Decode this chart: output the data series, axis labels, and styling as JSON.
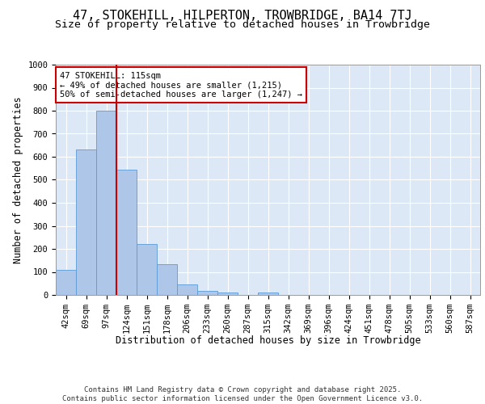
{
  "title": "47, STOKEHILL, HILPERTON, TROWBRIDGE, BA14 7TJ",
  "subtitle": "Size of property relative to detached houses in Trowbridge",
  "xlabel": "Distribution of detached houses by size in Trowbridge",
  "ylabel": "Number of detached properties",
  "categories": [
    "42sqm",
    "69sqm",
    "97sqm",
    "124sqm",
    "151sqm",
    "178sqm",
    "206sqm",
    "233sqm",
    "260sqm",
    "287sqm",
    "315sqm",
    "342sqm",
    "369sqm",
    "396sqm",
    "424sqm",
    "451sqm",
    "478sqm",
    "505sqm",
    "533sqm",
    "560sqm",
    "587sqm"
  ],
  "values": [
    110,
    630,
    800,
    545,
    220,
    135,
    45,
    18,
    10,
    0,
    10,
    0,
    0,
    0,
    0,
    0,
    0,
    0,
    0,
    0,
    0
  ],
  "bar_color": "#aec6e8",
  "bar_edge_color": "#5b9bd5",
  "vline_x_index": 2,
  "vline_color": "#cc0000",
  "annotation_text": "47 STOKEHILL: 115sqm\n← 49% of detached houses are smaller (1,215)\n50% of semi-detached houses are larger (1,247) →",
  "annotation_box_color": "#cc0000",
  "background_color": "#dce8f5",
  "grid_color": "#ffffff",
  "ylim": [
    0,
    1000
  ],
  "yticks": [
    0,
    100,
    200,
    300,
    400,
    500,
    600,
    700,
    800,
    900,
    1000
  ],
  "footer": "Contains HM Land Registry data © Crown copyright and database right 2025.\nContains public sector information licensed under the Open Government Licence v3.0.",
  "title_fontsize": 11,
  "subtitle_fontsize": 9.5,
  "xlabel_fontsize": 8.5,
  "ylabel_fontsize": 8.5,
  "tick_fontsize": 7.5,
  "annotation_fontsize": 7.5,
  "footer_fontsize": 6.5
}
